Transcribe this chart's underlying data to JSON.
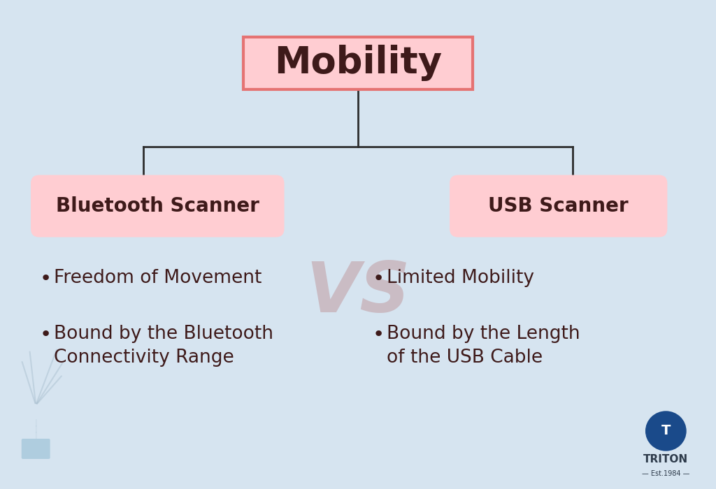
{
  "bg_color": "#d6e4f0",
  "title_text": "Mobility",
  "title_box_fill": "#ffcdd2",
  "title_box_edge": "#e57373",
  "title_text_color": "#3e1a1a",
  "title_fontsize": 38,
  "left_label": "Bluetooth Scanner",
  "right_label": "USB Scanner",
  "label_box_fill": "#ffcdd2",
  "label_text_color": "#3e1a1a",
  "label_fontsize": 20,
  "bullet_color": "#3e1a1a",
  "bullet_fontsize": 19,
  "left_bullets": [
    "Freedom of Movement",
    "Bound by the Bluetooth\nConnectivity Range"
  ],
  "right_bullets": [
    "Limited Mobility",
    "Bound by the Length\nof the USB Cable"
  ],
  "line_color": "#2d2d2d",
  "line_width": 2.0,
  "triton_circle_color": "#1a4a8a",
  "triton_text": "TRITON",
  "triton_sub": "Est.1984"
}
